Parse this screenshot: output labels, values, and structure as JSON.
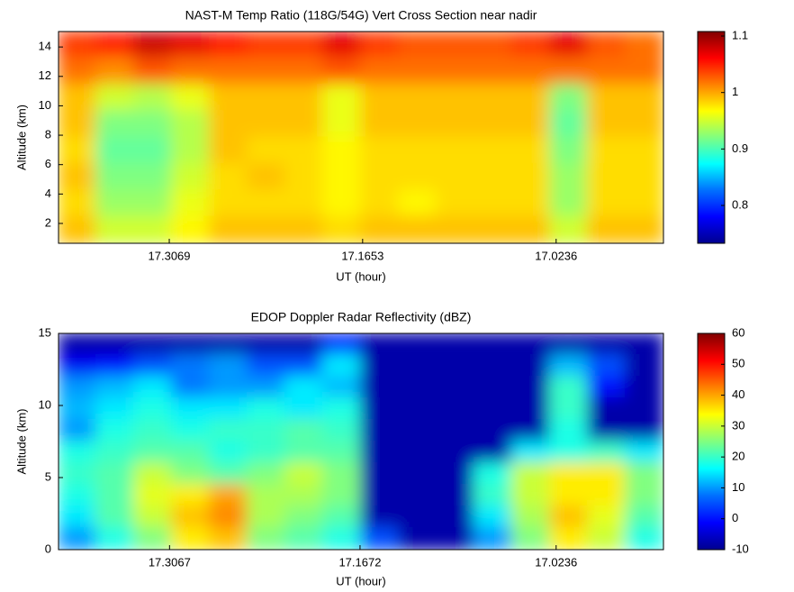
{
  "chart_data": [
    {
      "type": "heatmap",
      "title": "NAST-M Temp Ratio (118G/54G) Vert Cross Section near nadir",
      "xlabel": "UT (hour)",
      "ylabel": "Altitude (km)",
      "xlim": [
        17.388,
        16.945
      ],
      "xticks": [
        17.3069,
        17.1653,
        17.0236
      ],
      "ylim": [
        0.65,
        15.05
      ],
      "yticks": [
        2,
        4,
        6,
        8,
        10,
        12,
        14
      ],
      "clim": [
        0.733,
        1.108
      ],
      "cticks": [
        0.8,
        0.9,
        1,
        1.1
      ],
      "colormap": [
        "#00008f",
        "#0000ff",
        "#0070ff",
        "#00ffff",
        "#80ff80",
        "#ffff00",
        "#ff8000",
        "#ff0000",
        "#800000"
      ],
      "z": [
        [
          1.04,
          1.05,
          1.08,
          1.07,
          1.05,
          1.04,
          1.04,
          1.07,
          1.04,
          1.03,
          1.03,
          1.03,
          1.04,
          1.07,
          1.03,
          1.02
        ],
        [
          1.02,
          1.01,
          1.03,
          1.02,
          1.02,
          1.02,
          1.02,
          1.03,
          1.02,
          1.02,
          1.02,
          1.02,
          1.02,
          1.02,
          1.02,
          1.02
        ],
        [
          0.99,
          0.95,
          0.94,
          0.96,
          0.99,
          0.99,
          0.99,
          0.96,
          0.99,
          0.99,
          0.99,
          0.99,
          0.99,
          0.92,
          0.99,
          0.99
        ],
        [
          0.99,
          0.92,
          0.92,
          0.94,
          0.99,
          0.99,
          0.99,
          0.96,
          0.99,
          0.99,
          0.99,
          0.99,
          0.99,
          0.91,
          0.99,
          0.99
        ],
        [
          0.98,
          0.91,
          0.91,
          0.94,
          0.99,
          0.98,
          0.98,
          0.97,
          0.98,
          0.98,
          0.98,
          0.98,
          0.98,
          0.92,
          0.98,
          0.98
        ],
        [
          0.99,
          0.92,
          0.92,
          0.95,
          0.98,
          0.99,
          0.98,
          0.97,
          0.98,
          0.98,
          0.98,
          0.98,
          0.98,
          0.93,
          0.98,
          0.98
        ],
        [
          0.98,
          0.93,
          0.93,
          0.96,
          0.98,
          0.98,
          0.98,
          0.97,
          0.98,
          0.97,
          0.98,
          0.98,
          0.98,
          0.93,
          0.98,
          0.98
        ],
        [
          0.99,
          0.95,
          0.95,
          0.97,
          0.99,
          0.99,
          0.99,
          0.98,
          0.99,
          0.99,
          0.99,
          0.99,
          0.99,
          0.95,
          0.99,
          0.99
        ]
      ]
    },
    {
      "type": "heatmap",
      "title": "EDOP Doppler Radar Reflectivity (dBZ)",
      "xlabel": "UT (hour)",
      "ylabel": "Altitude (km)",
      "xlim": [
        17.388,
        16.945
      ],
      "xticks": [
        17.3067,
        17.1672,
        17.0236
      ],
      "ylim": [
        0,
        15
      ],
      "yticks": [
        0,
        5,
        10,
        15
      ],
      "clim": [
        -10,
        60
      ],
      "cticks": [
        -10,
        0,
        10,
        20,
        30,
        40,
        50,
        60
      ],
      "colormap": [
        "#00008f",
        "#0000ff",
        "#0070ff",
        "#00ffff",
        "#80ff80",
        "#ffff00",
        "#ff8000",
        "#ff0000",
        "#800000"
      ],
      "z": [
        [
          -8,
          -8,
          -8,
          -8,
          -8,
          -8,
          -8,
          2,
          -8,
          -8,
          -8,
          -8,
          -8,
          -8,
          -8,
          -8
        ],
        [
          -2,
          0,
          5,
          8,
          10,
          5,
          5,
          15,
          -8,
          -8,
          -8,
          -8,
          -8,
          12,
          5,
          -8
        ],
        [
          10,
          12,
          15,
          8,
          10,
          10,
          15,
          12,
          -8,
          -8,
          -8,
          -8,
          -8,
          20,
          0,
          -8
        ],
        [
          12,
          15,
          18,
          15,
          15,
          18,
          15,
          18,
          -8,
          -8,
          -8,
          -8,
          -8,
          20,
          -8,
          -8
        ],
        [
          10,
          18,
          20,
          18,
          20,
          20,
          22,
          20,
          -8,
          -8,
          -8,
          -8,
          -8,
          18,
          -8,
          -8
        ],
        [
          18,
          20,
          22,
          22,
          18,
          20,
          22,
          22,
          -8,
          -8,
          -8,
          -8,
          15,
          18,
          20,
          15
        ],
        [
          20,
          22,
          30,
          25,
          22,
          25,
          30,
          25,
          -8,
          -8,
          -8,
          18,
          30,
          35,
          35,
          25
        ],
        [
          18,
          22,
          32,
          35,
          40,
          28,
          28,
          25,
          -8,
          -8,
          -8,
          20,
          30,
          35,
          35,
          25
        ],
        [
          15,
          22,
          30,
          38,
          42,
          28,
          25,
          22,
          -8,
          -8,
          -8,
          15,
          28,
          38,
          32,
          22
        ],
        [
          10,
          18,
          25,
          35,
          38,
          25,
          22,
          18,
          5,
          -8,
          -8,
          10,
          25,
          35,
          30,
          18
        ]
      ]
    }
  ]
}
